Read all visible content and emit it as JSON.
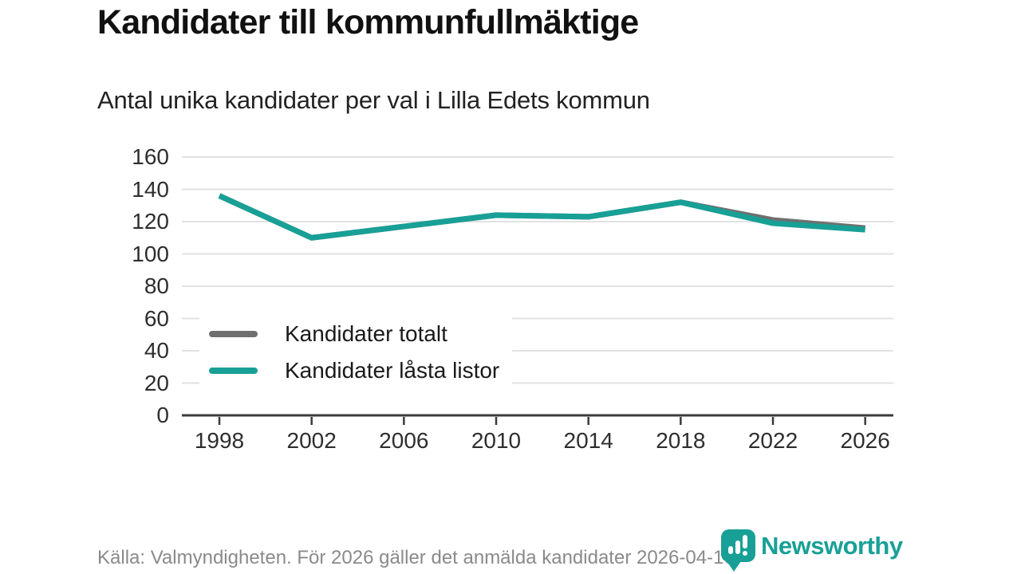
{
  "chart_data": {
    "type": "line",
    "title": "Kandidater till kommunfullmäktige",
    "subtitle": "Antal unika kandidater per val i Lilla Edets kommun",
    "categories": [
      1998,
      2002,
      2006,
      2010,
      2014,
      2018,
      2022,
      2026
    ],
    "series": [
      {
        "name": "Kandidater totalt",
        "color": "#6f6f6f",
        "values": [
          136,
          110,
          117,
          124,
          123,
          132,
          121,
          116
        ]
      },
      {
        "name": "Kandidater låsta listor",
        "color": "#18a096",
        "values": [
          136,
          110,
          117,
          124,
          123,
          132,
          119,
          115
        ]
      }
    ],
    "xlabel": "",
    "ylabel": "",
    "ylim": [
      0,
      160
    ],
    "yticks": [
      0,
      20,
      40,
      60,
      80,
      100,
      120,
      140,
      160
    ],
    "grid": "horizontal",
    "legend_position": "inside-bottom-left"
  },
  "footer": {
    "source_text": "Källa: Valmyndigheten. För 2026 gäller det anmälda kandidater 2026-04-10."
  },
  "branding": {
    "logo_text": "Newsworthy",
    "logo_icon": "speech-bubble-bar-chart-exclamation",
    "color": "#18a096"
  },
  "colors": {
    "grid": "#e2e2e2",
    "axis": "#3b3b3b",
    "tick_label": "#2e2e2e",
    "title": "#111111",
    "footer_text": "#8a8a8a"
  }
}
